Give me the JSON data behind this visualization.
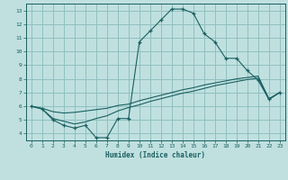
{
  "title": "",
  "xlabel": "Humidex (Indice chaleur)",
  "ylabel": "",
  "bg_color": "#c0e0e0",
  "grid_color": "#90c0c0",
  "line_color": "#1a6060",
  "xlim": [
    -0.5,
    23.5
  ],
  "ylim": [
    3.5,
    13.5
  ],
  "xticks": [
    0,
    1,
    2,
    3,
    4,
    5,
    6,
    7,
    8,
    9,
    10,
    11,
    12,
    13,
    14,
    15,
    16,
    17,
    18,
    19,
    20,
    21,
    22,
    23
  ],
  "yticks": [
    4,
    5,
    6,
    7,
    8,
    9,
    10,
    11,
    12,
    13
  ],
  "line1_x": [
    0,
    1,
    2,
    3,
    4,
    5,
    6,
    7,
    8,
    9,
    10,
    11,
    12,
    13,
    14,
    15,
    16,
    17,
    18,
    19,
    20,
    21,
    22,
    23
  ],
  "line1_y": [
    6.0,
    5.8,
    5.0,
    4.6,
    4.4,
    4.6,
    3.7,
    3.7,
    5.1,
    5.1,
    10.7,
    11.5,
    12.3,
    13.1,
    13.1,
    12.8,
    11.3,
    10.7,
    9.5,
    9.5,
    8.6,
    7.9,
    6.5,
    7.0
  ],
  "line2_x": [
    0,
    1,
    2,
    3,
    4,
    5,
    6,
    7,
    8,
    9,
    10,
    11,
    12,
    13,
    14,
    15,
    16,
    17,
    18,
    19,
    20,
    21,
    22,
    23
  ],
  "line2_y": [
    6.0,
    5.85,
    5.6,
    5.5,
    5.55,
    5.65,
    5.75,
    5.85,
    6.05,
    6.15,
    6.4,
    6.6,
    6.8,
    7.0,
    7.2,
    7.35,
    7.55,
    7.7,
    7.85,
    8.0,
    8.1,
    8.2,
    6.55,
    7.0
  ],
  "line3_x": [
    0,
    1,
    2,
    3,
    4,
    5,
    6,
    7,
    8,
    9,
    10,
    11,
    12,
    13,
    14,
    15,
    16,
    17,
    18,
    19,
    20,
    21,
    22,
    23
  ],
  "line3_y": [
    6.0,
    5.8,
    5.1,
    4.9,
    4.7,
    4.85,
    5.1,
    5.3,
    5.65,
    5.9,
    6.1,
    6.35,
    6.55,
    6.75,
    6.95,
    7.1,
    7.3,
    7.5,
    7.65,
    7.8,
    7.95,
    8.05,
    6.5,
    7.0
  ]
}
